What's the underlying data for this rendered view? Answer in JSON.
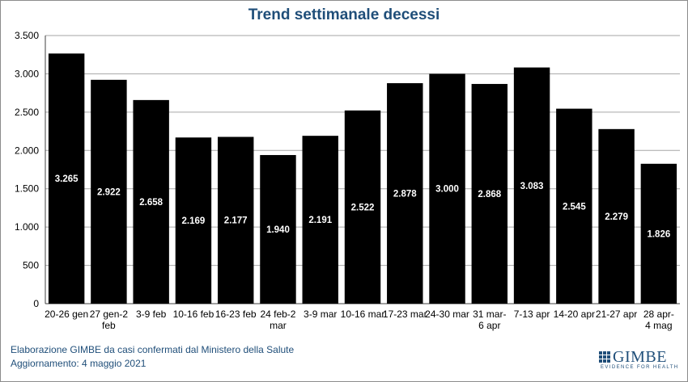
{
  "chart_data": {
    "type": "bar",
    "title": "Trend settimanale decessi",
    "xlabel": "",
    "ylabel": "",
    "ylim": [
      0,
      3500
    ],
    "grid": true,
    "legend": "none",
    "bar_color": "#000000",
    "title_color": "#1f4e79",
    "ytick_values": [
      0,
      500,
      1000,
      1500,
      2000,
      2500,
      3000,
      3500
    ],
    "yticks": [
      "0",
      "500",
      "1.000",
      "1.500",
      "2.000",
      "2.500",
      "3.000",
      "3.500"
    ],
    "categories": [
      [
        "20-26 gen"
      ],
      [
        "27 gen-2",
        "feb"
      ],
      [
        "3-9 feb"
      ],
      [
        "10-16 feb"
      ],
      [
        "16-23 feb"
      ],
      [
        "24 feb-2",
        "mar"
      ],
      [
        "3-9 mar"
      ],
      [
        "10-16 mar"
      ],
      [
        "17-23 mar"
      ],
      [
        "24-30 mar"
      ],
      [
        "31 mar-",
        "6 apr"
      ],
      [
        "7-13 apr"
      ],
      [
        "14-20 apr"
      ],
      [
        "21-27 apr"
      ],
      [
        "28 apr-",
        "4 mag"
      ]
    ],
    "values": [
      3265,
      2922,
      2658,
      2169,
      2177,
      1940,
      2191,
      2522,
      2878,
      3000,
      2868,
      3083,
      2545,
      2279,
      1826
    ],
    "data_labels": [
      "3.265",
      "2.922",
      "2.658",
      "2.169",
      "2.177",
      "1.940",
      "2.191",
      "2.522",
      "2.878",
      "3.000",
      "2.868",
      "3.083",
      "2.545",
      "2.279",
      "1.826"
    ]
  },
  "footer": {
    "source": "Elaborazione GIMBE da casi confermati dal Ministero della Salute",
    "updated": "Aggiornamento: 4 maggio 2021"
  },
  "logo": {
    "name": "GIMBE",
    "tagline": "EVIDENCE FOR HEALTH"
  }
}
